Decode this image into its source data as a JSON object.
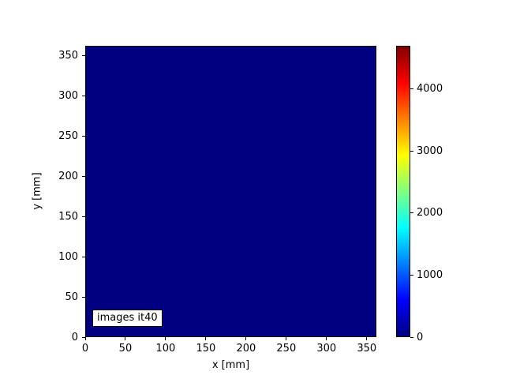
{
  "figure": {
    "background": "#ffffff"
  },
  "chart_data": {
    "type": "heatmap",
    "title": "",
    "xlabel": "x [mm]",
    "ylabel": "y [mm]",
    "xlim": [
      0,
      362
    ],
    "ylim": [
      0,
      362
    ],
    "x_ticks": [
      0,
      50,
      100,
      150,
      200,
      250,
      300,
      350
    ],
    "y_ticks": [
      0,
      50,
      100,
      150,
      200,
      250,
      300,
      350
    ],
    "grid": false,
    "annotation": "images it40",
    "heatmap": {
      "description": "uniform image at colormap minimum across full extent",
      "uniform_value": 0,
      "fill_color": "#000080"
    },
    "colorbar": {
      "vmin": 0,
      "vmax": 4700,
      "ticks": [
        0,
        1000,
        2000,
        3000,
        4000
      ],
      "colormap": "jet",
      "stops": [
        {
          "pos": 0.0,
          "color": "#000080"
        },
        {
          "pos": 0.125,
          "color": "#0000ff"
        },
        {
          "pos": 0.375,
          "color": "#00ffff"
        },
        {
          "pos": 0.625,
          "color": "#ffff00"
        },
        {
          "pos": 0.875,
          "color": "#ff0000"
        },
        {
          "pos": 1.0,
          "color": "#800000"
        }
      ]
    }
  }
}
